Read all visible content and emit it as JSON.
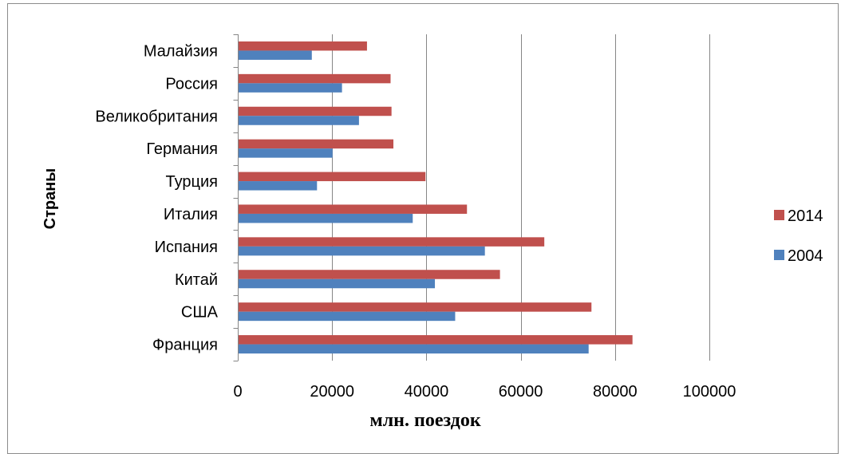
{
  "chart_data": {
    "type": "bar",
    "orientation": "horizontal",
    "categories": [
      "Франция",
      "США",
      "Китай",
      "Испания",
      "Италия",
      "Турция",
      "Германия",
      "Великобритания",
      "Россия",
      "Малайзия"
    ],
    "series": [
      {
        "name": "2004",
        "color": "#4f81bd",
        "values": [
          74400,
          46100,
          41800,
          52400,
          37100,
          16800,
          20100,
          25700,
          22100,
          15700
        ]
      },
      {
        "name": "2014",
        "color": "#c0504d",
        "values": [
          83700,
          75000,
          55600,
          65000,
          48600,
          39800,
          33000,
          32600,
          32400,
          27400
        ]
      }
    ],
    "xlabel": "млн. поездок",
    "ylabel": "Страны",
    "xlim": [
      0,
      100000
    ],
    "xticks": [
      0,
      20000,
      40000,
      60000,
      80000,
      100000
    ],
    "grid": "vertical",
    "legend_position": "right",
    "legend_order": [
      "2014",
      "2004"
    ],
    "gridline_color": "#868686",
    "axis_color": "#868686"
  }
}
